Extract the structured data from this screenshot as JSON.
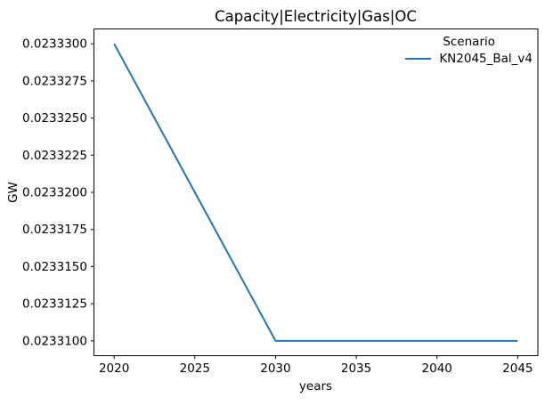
{
  "chart_data": {
    "type": "line",
    "title": "Capacity|Electricity|Gas|OC",
    "xlabel": "years",
    "ylabel": "GW",
    "legend_title": "Scenario",
    "legend_position": "upper right",
    "grid": false,
    "background": "#ffffff",
    "axis_color": "#000000",
    "text_color": "#000000",
    "x": [
      2020,
      2025,
      2030,
      2035,
      2040,
      2045
    ],
    "series": [
      {
        "name": "KN2045_Bal_v4",
        "color": "#1f77b4",
        "values": [
          0.02333,
          0.02332,
          0.02331,
          0.02331,
          0.02331,
          0.02331
        ]
      }
    ],
    "xlim": [
      2018.75,
      2046.25
    ],
    "ylim": [
      0.023309,
      0.023331
    ],
    "xticks": [
      2020,
      2025,
      2030,
      2035,
      2040,
      2045
    ],
    "xtick_labels": [
      "2020",
      "2025",
      "2030",
      "2035",
      "2040",
      "2045"
    ],
    "ytick_values": [
      0.02333,
      0.0233275,
      0.023325,
      0.0233225,
      0.02332,
      0.0233175,
      0.023315,
      0.0233125,
      0.02331
    ],
    "ytick_labels": [
      "0.0233300",
      "0.0233275",
      "0.0233250",
      "0.0233225",
      "0.0233200",
      "0.0233175",
      "0.0233150",
      "0.0233125",
      "0.0233100"
    ]
  }
}
